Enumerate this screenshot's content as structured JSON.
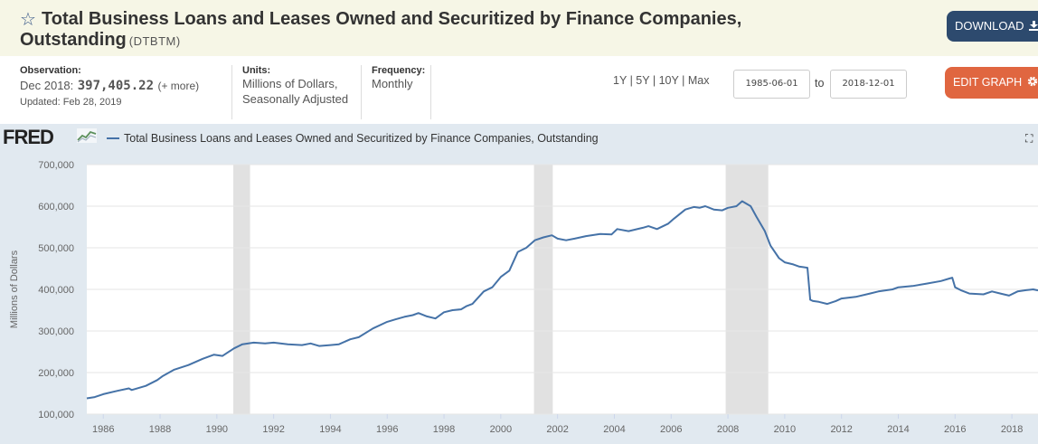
{
  "header": {
    "title_line1": "Total Business Loans and Leases Owned and Securitized by Finance Companies,",
    "title_line2": "Outstanding",
    "series_id": "(DTBTM)",
    "download_label": "DOWNLOAD",
    "star_icon": "star-outline-icon",
    "download_icon": "download-icon"
  },
  "meta": {
    "observation_label": "Observation:",
    "observation_date": "Dec 2018:",
    "observation_value": "397,405.22",
    "observation_more": "(+ more)",
    "updated": "Updated: Feb 28, 2019",
    "units_label": "Units:",
    "units_line1": "Millions of Dollars,",
    "units_line2": "Seasonally Adjusted",
    "frequency_label": "Frequency:",
    "frequency_value": "Monthly"
  },
  "controls": {
    "range_1y": "1Y",
    "range_5y": "5Y",
    "range_10y": "10Y",
    "range_max": "Max",
    "separator": "|",
    "start_date": "1985-06-01",
    "to_label": "to",
    "end_date": "2018-12-01",
    "edit_label": "EDIT GRAPH",
    "edit_icon": "gear-icon"
  },
  "legend": {
    "logo": "FRED",
    "series_name": "Total Business Loans and Leases Owned and Securitized by Finance Companies, Outstanding",
    "fullscreen_icon": "fullscreen-icon"
  },
  "colors": {
    "series": "#4572a7",
    "recession": "#e1e1e1",
    "panel": "#e1e9f0",
    "download": "#2d4a6e",
    "edit": "#e06640"
  },
  "chart_data": {
    "type": "line",
    "title": "Total Business Loans and Leases Owned and Securitized by Finance Companies, Outstanding",
    "xlabel": "",
    "ylabel": "Millions of Dollars",
    "xlim": [
      1985.42,
      2018.92
    ],
    "ylim": [
      100000,
      700000
    ],
    "y_ticks": [
      100000,
      200000,
      300000,
      400000,
      500000,
      600000,
      700000
    ],
    "y_tick_labels": [
      "100,000",
      "200,000",
      "300,000",
      "400,000",
      "500,000",
      "600,000",
      "700,000"
    ],
    "x_ticks": [
      1986,
      1988,
      1990,
      1992,
      1994,
      1996,
      1998,
      2000,
      2002,
      2004,
      2006,
      2008,
      2010,
      2012,
      2014,
      2016,
      2018
    ],
    "x_tick_labels": [
      "1986",
      "1988",
      "1990",
      "1992",
      "1994",
      "1996",
      "1998",
      "2000",
      "2002",
      "2004",
      "2006",
      "2008",
      "2010",
      "2012",
      "2014",
      "2016",
      "2018"
    ],
    "grid": true,
    "recessions": [
      [
        1990.58,
        1991.17
      ],
      [
        2001.17,
        2001.83
      ],
      [
        2007.92,
        2009.42
      ]
    ],
    "series": [
      {
        "name": "DTBTM",
        "x": [
          1985.42,
          1985.7,
          1986.0,
          1986.5,
          1986.9,
          1987.0,
          1987.5,
          1987.9,
          1988.1,
          1988.5,
          1989.0,
          1989.5,
          1989.9,
          1990.2,
          1990.6,
          1990.9,
          1991.3,
          1991.7,
          1992.0,
          1992.5,
          1993.0,
          1993.3,
          1993.6,
          1994.0,
          1994.3,
          1994.7,
          1995.0,
          1995.5,
          1996.0,
          1996.3,
          1996.6,
          1996.9,
          1997.1,
          1997.4,
          1997.7,
          1998.0,
          1998.3,
          1998.6,
          1998.8,
          1999.0,
          1999.4,
          1999.7,
          2000.0,
          2000.3,
          2000.6,
          2000.9,
          2001.2,
          2001.5,
          2001.8,
          2002.0,
          2002.3,
          2002.6,
          2003.0,
          2003.5,
          2003.9,
          2004.1,
          2004.5,
          2005.0,
          2005.2,
          2005.5,
          2005.9,
          2006.1,
          2006.5,
          2006.8,
          2007.0,
          2007.2,
          2007.5,
          2007.8,
          2008.0,
          2008.3,
          2008.5,
          2008.8,
          2009.0,
          2009.3,
          2009.5,
          2009.8,
          2010.0,
          2010.3,
          2010.5,
          2010.8,
          2010.9,
          2011.0,
          2011.2,
          2011.5,
          2011.8,
          2012.0,
          2012.5,
          2013.0,
          2013.3,
          2013.8,
          2014.0,
          2014.5,
          2015.0,
          2015.5,
          2015.8,
          2015.9,
          2016.0,
          2016.2,
          2016.5,
          2017.0,
          2017.3,
          2017.6,
          2017.9,
          2018.2,
          2018.5,
          2018.75,
          2018.92
        ],
        "y": [
          138000,
          141000,
          148000,
          156000,
          162000,
          158000,
          168000,
          182000,
          192000,
          207000,
          218000,
          233000,
          243000,
          240000,
          258000,
          268000,
          272000,
          270000,
          272000,
          268000,
          266000,
          270000,
          264000,
          266000,
          268000,
          280000,
          285000,
          306000,
          322000,
          328000,
          334000,
          338000,
          343000,
          335000,
          330000,
          345000,
          350000,
          352000,
          360000,
          365000,
          395000,
          405000,
          430000,
          445000,
          490000,
          500000,
          518000,
          525000,
          530000,
          522000,
          518000,
          522000,
          528000,
          533000,
          532000,
          545000,
          540000,
          548000,
          552000,
          545000,
          558000,
          570000,
          592000,
          598000,
          596000,
          600000,
          592000,
          590000,
          596000,
          600000,
          612000,
          600000,
          575000,
          540000,
          505000,
          475000,
          465000,
          460000,
          455000,
          452000,
          375000,
          372000,
          370000,
          365000,
          372000,
          378000,
          382000,
          390000,
          395000,
          400000,
          405000,
          408000,
          414000,
          420000,
          426000,
          428000,
          405000,
          398000,
          390000,
          388000,
          395000,
          390000,
          385000,
          395000,
          398000,
          400000,
          397405
        ]
      }
    ]
  }
}
